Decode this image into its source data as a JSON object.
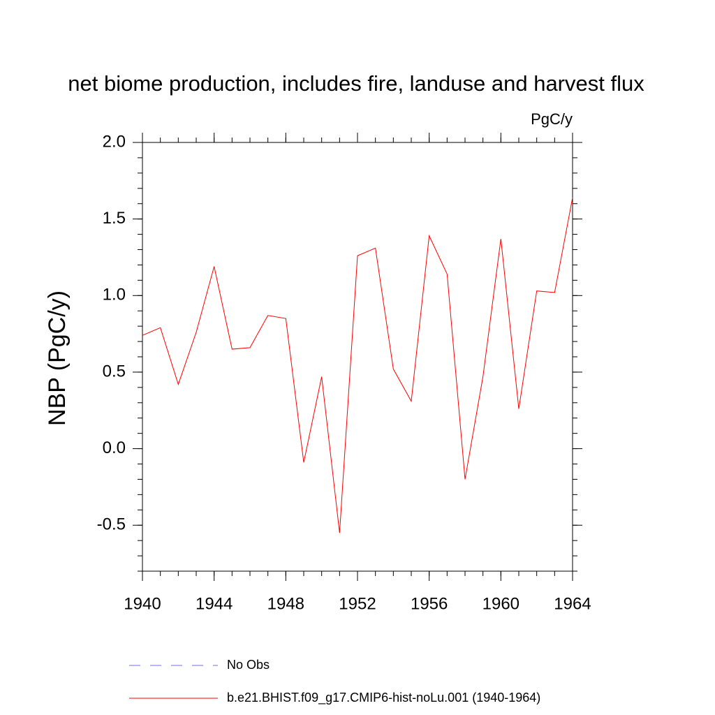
{
  "chart_data": {
    "type": "line",
    "title": "net biome production, includes fire, landuse and harvest flux",
    "units": "PgC/y",
    "y_label": "NBP  (PgC/y)",
    "x": [
      1940,
      1941,
      1942,
      1943,
      1944,
      1945,
      1946,
      1947,
      1948,
      1949,
      1950,
      1951,
      1952,
      1953,
      1954,
      1955,
      1956,
      1957,
      1958,
      1959,
      1960,
      1961,
      1962,
      1963,
      1964
    ],
    "series": [
      {
        "name": "No Obs",
        "color": "#6f6fd8",
        "dash": true,
        "values": [
          null,
          null,
          null,
          null,
          null,
          null,
          null,
          null,
          null,
          null,
          null,
          null,
          null,
          null,
          null,
          null,
          null,
          null,
          null,
          null,
          null,
          null,
          null,
          null,
          null
        ]
      },
      {
        "name": "b.e21.BHIST.f09_g17.CMIP6-hist-noLu.001 (1940-1964)",
        "color": "#ff0000",
        "dash": false,
        "values": [
          0.74,
          0.79,
          0.42,
          0.76,
          1.19,
          0.65,
          0.66,
          0.87,
          0.85,
          -0.09,
          0.47,
          -0.55,
          1.26,
          1.31,
          0.52,
          0.31,
          1.39,
          1.14,
          -0.2,
          0.47,
          1.37,
          0.26,
          1.03,
          1.02,
          1.64
        ]
      }
    ],
    "xlim": [
      1940,
      1964
    ],
    "xticks": [
      1940,
      1944,
      1948,
      1952,
      1956,
      1960,
      1964
    ],
    "ylim": [
      -0.8,
      2.0
    ],
    "yticks": [
      {
        "value": -0.5,
        "label": "-0.5"
      },
      {
        "value": 0,
        "label": "0.0"
      },
      {
        "value": 0.5,
        "label": "0.5"
      },
      {
        "value": 1,
        "label": "1.0"
      },
      {
        "value": 1.5,
        "label": "1.5"
      },
      {
        "value": 2,
        "label": "2.0"
      }
    ],
    "grid": false
  }
}
